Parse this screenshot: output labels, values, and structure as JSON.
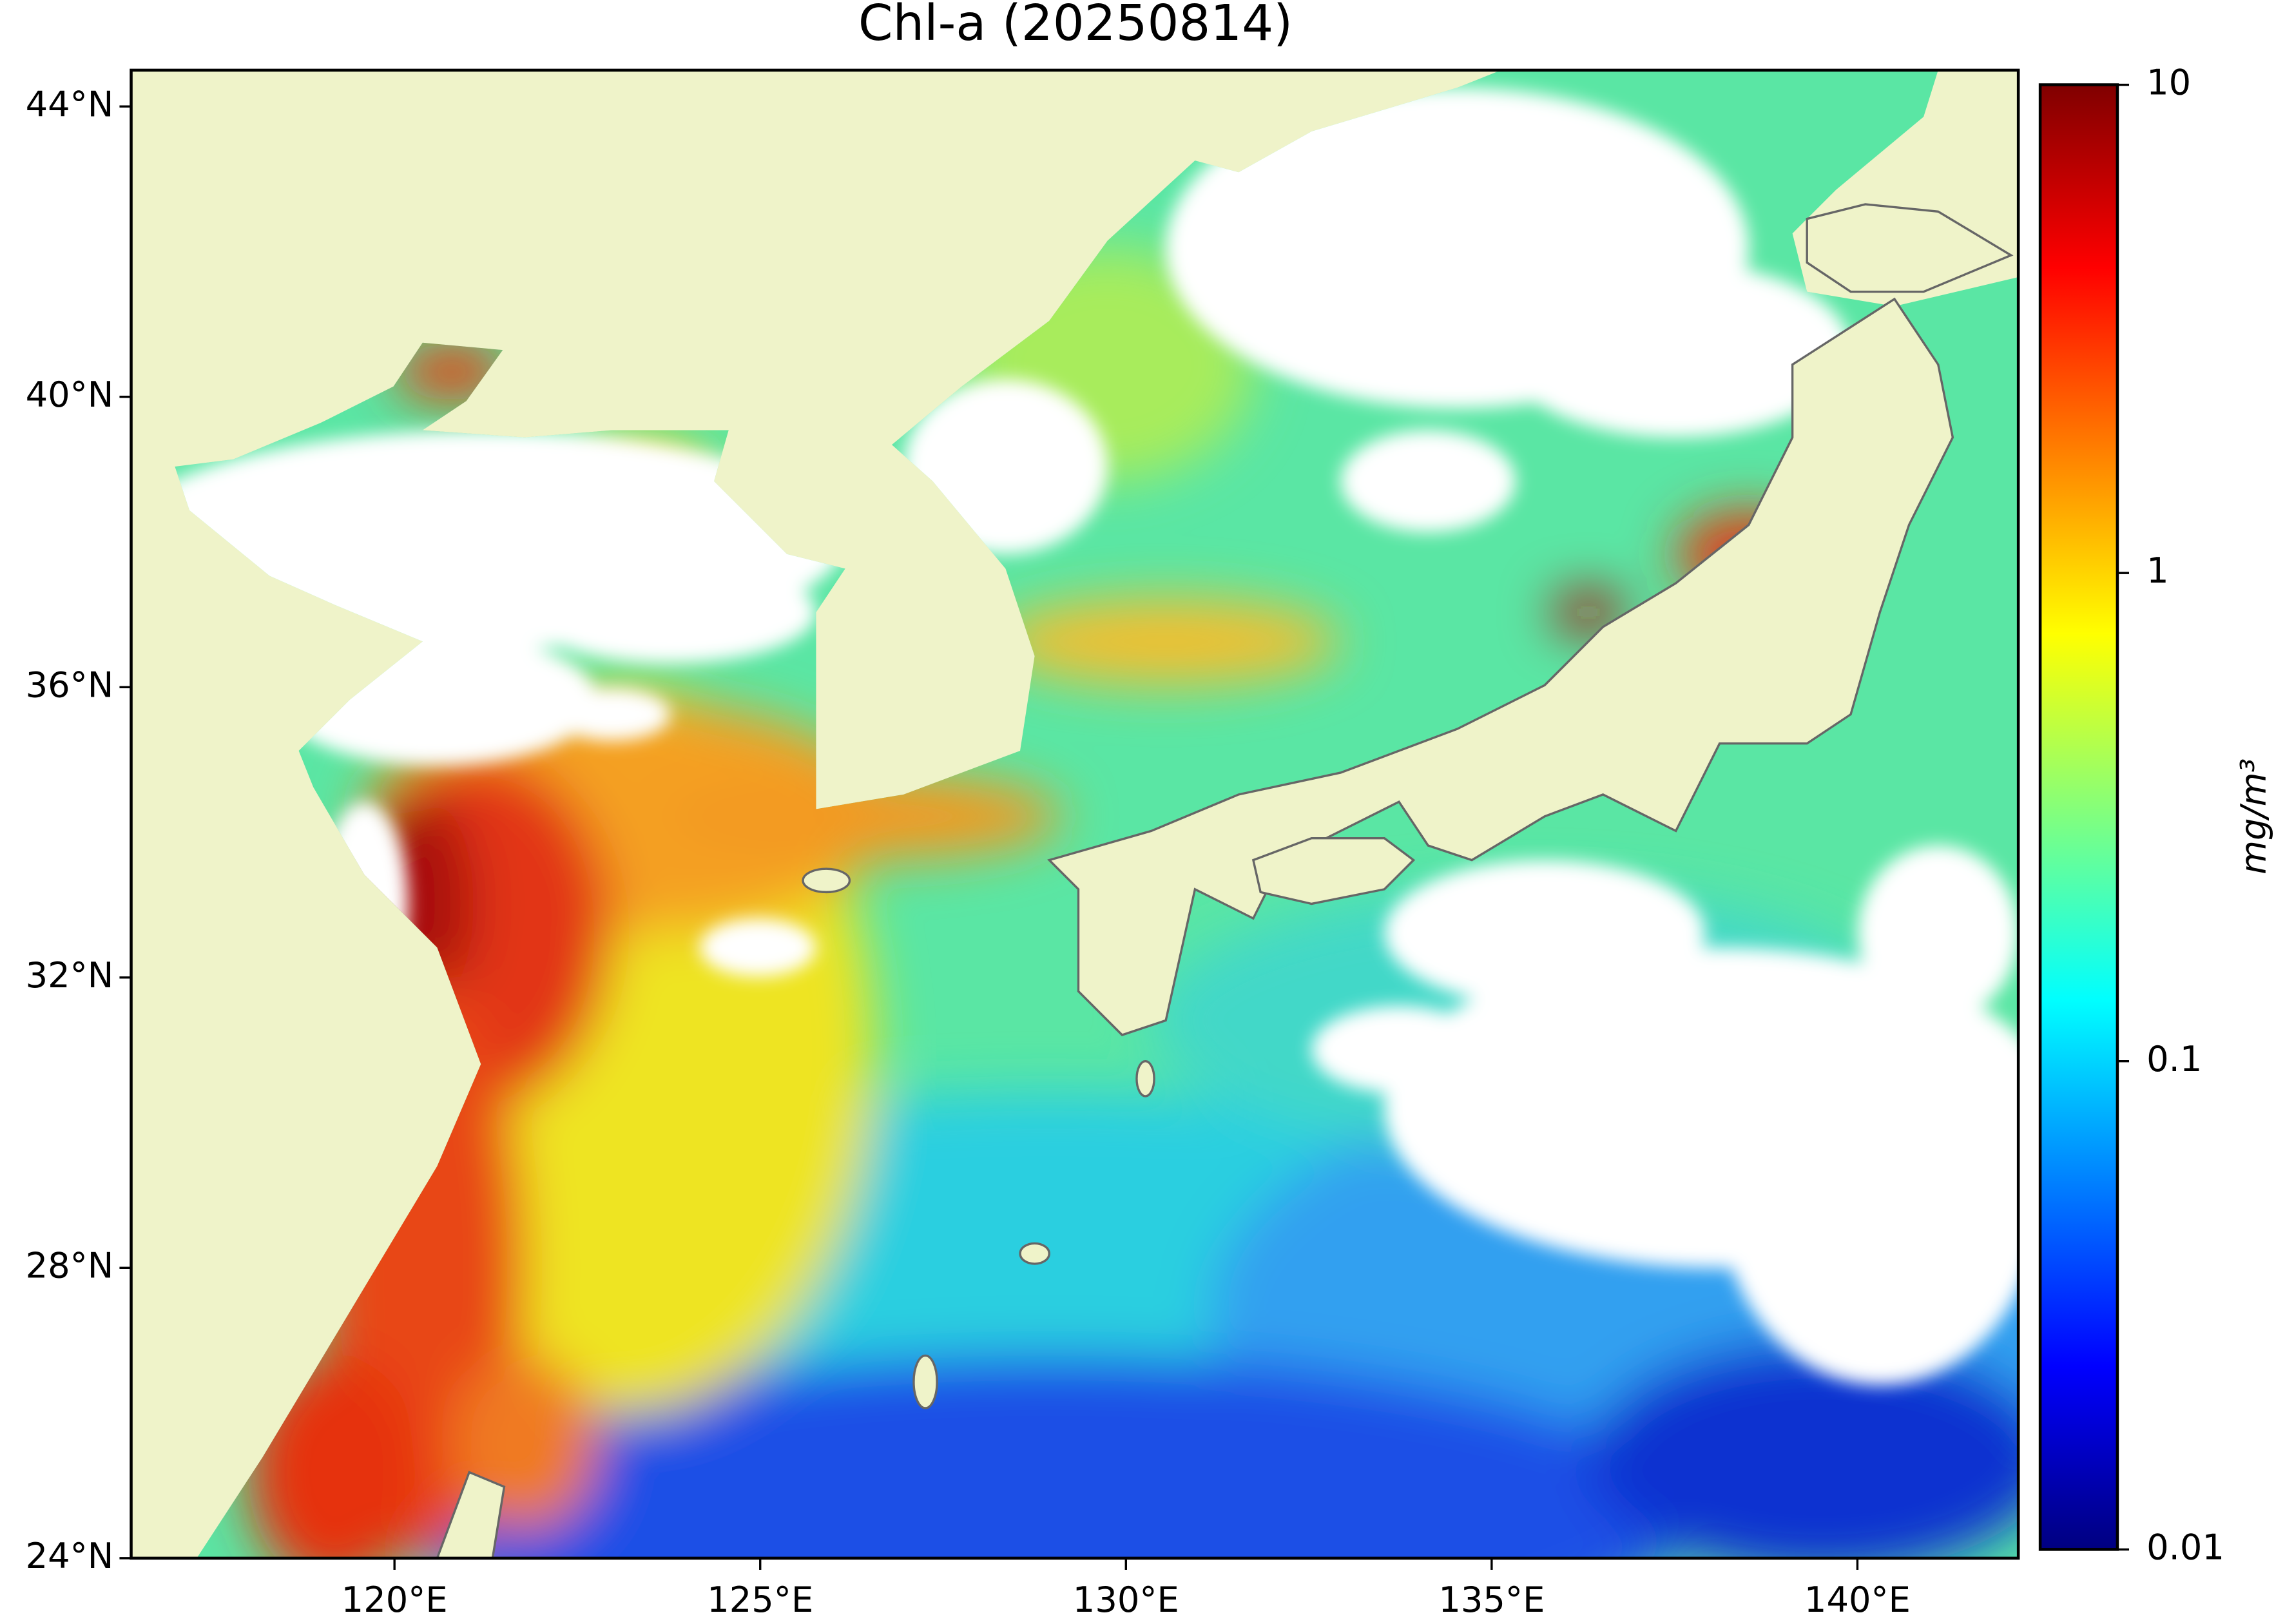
{
  "chart_data": {
    "type": "map",
    "title": "Chl-a (20250814)",
    "xlim": [
      116.4,
      142.2
    ],
    "ylim": [
      24,
      44.5
    ],
    "xticks": [
      {
        "value": 120,
        "label": "120°E"
      },
      {
        "value": 125,
        "label": "125°E"
      },
      {
        "value": 130,
        "label": "130°E"
      },
      {
        "value": 135,
        "label": "135°E"
      },
      {
        "value": 140,
        "label": "140°E"
      }
    ],
    "yticks": [
      {
        "value": 24,
        "label": "24°N"
      },
      {
        "value": 28,
        "label": "28°N"
      },
      {
        "value": 32,
        "label": "32°N"
      },
      {
        "value": 36,
        "label": "36°N"
      },
      {
        "value": 40,
        "label": "40°N"
      },
      {
        "value": 44,
        "label": "44°N"
      }
    ],
    "colorbar": {
      "label": "mg/m³",
      "lim": [
        0.01,
        10
      ],
      "ticks": [
        0.01,
        0.1,
        1,
        10
      ],
      "log": true,
      "colormap": "jet"
    }
  }
}
